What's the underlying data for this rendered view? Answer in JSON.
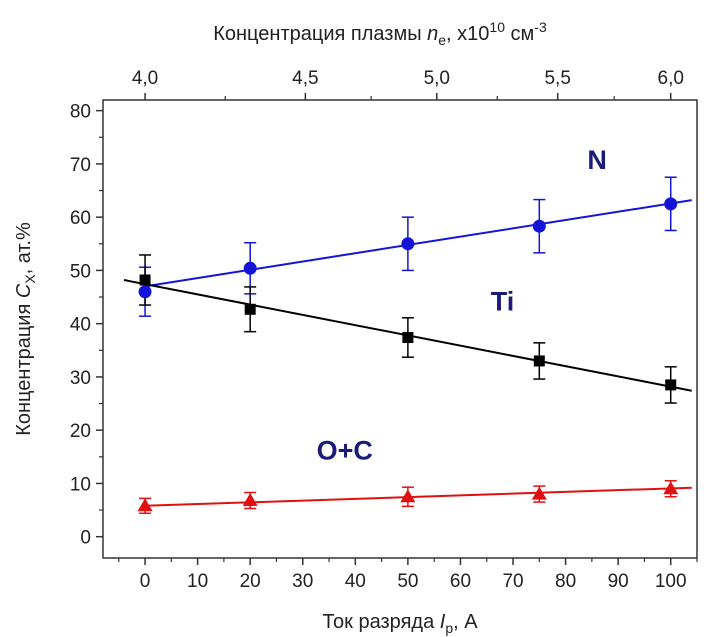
{
  "chart_data": {
    "type": "scatter",
    "title": "",
    "xlabel": {
      "prefix": "Ток разряда ",
      "symbol": "I",
      "sub": "р",
      "suffix": ", А"
    },
    "ylabel": {
      "prefix": "Концентрация ",
      "symbol": "C",
      "sub": "X",
      "suffix": ", ат.%"
    },
    "x2label": {
      "prefix": "Концентрация плазмы ",
      "symbol": "n",
      "sub": "e",
      "suffix": ", x10",
      "sup1": "10",
      "unit": " см",
      "sup2": "-3"
    },
    "xlim": [
      -8,
      105
    ],
    "ylim": [
      -4,
      82
    ],
    "x_ticks": [
      0,
      10,
      20,
      30,
      40,
      50,
      60,
      70,
      80,
      90,
      100
    ],
    "y_ticks": [
      0,
      10,
      20,
      30,
      40,
      50,
      60,
      70,
      80
    ],
    "x2_ticks": [
      {
        "label": "4,0",
        "at": 0
      },
      {
        "label": "4,5",
        "at": 30.5
      },
      {
        "label": "5,0",
        "at": 55.5
      },
      {
        "label": "5,5",
        "at": 78.5
      },
      {
        "label": "6,0",
        "at": 100
      }
    ],
    "series": [
      {
        "name": "N",
        "color": "#1414d8",
        "marker": "circle",
        "x": [
          0,
          20,
          50,
          75,
          100
        ],
        "y": [
          46,
          50.4,
          55,
          58.3,
          62.5
        ],
        "err": [
          4.6,
          4.8,
          5,
          5,
          5
        ],
        "fit": {
          "x": [
            0,
            104
          ],
          "y": [
            47,
            63.2
          ]
        },
        "label_pos": {
          "x": 86,
          "y": 69
        }
      },
      {
        "name": "Ti",
        "color": "#000000",
        "marker": "square",
        "x": [
          0,
          20,
          50,
          75,
          100
        ],
        "y": [
          48.2,
          42.7,
          37.4,
          33,
          28.5
        ],
        "err": [
          4.7,
          4.2,
          3.7,
          3.4,
          3.4
        ],
        "fit": {
          "x": [
            -4,
            104
          ],
          "y": [
            48.2,
            27.4
          ]
        },
        "label_pos": {
          "x": 68,
          "y": 42.5
        }
      },
      {
        "name": "O+C",
        "color": "#e01010",
        "marker": "triangle",
        "x": [
          0,
          20,
          50,
          75,
          100
        ],
        "y": [
          5.8,
          6.8,
          7.5,
          8,
          9
        ],
        "err": [
          1.4,
          1.5,
          1.8,
          1.5,
          1.5
        ],
        "fit": {
          "x": [
            0,
            104
          ],
          "y": [
            5.8,
            9.2
          ]
        },
        "label_pos": {
          "x": 38,
          "y": 14.5
        }
      }
    ]
  }
}
